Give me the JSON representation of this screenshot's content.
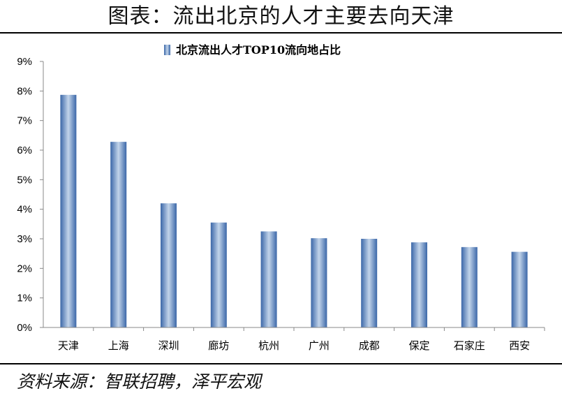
{
  "header": {
    "title": "图表：流出北京的人才主要去向天津"
  },
  "footer": {
    "source": "资料来源：智联招聘，泽平宏观"
  },
  "colors": {
    "bar_dark": "#3b67a8",
    "bar_light": "#c2d4ea",
    "axis": "#888888"
  },
  "chart_data": {
    "type": "bar",
    "title": "北京流出人才TOP10流向地占比",
    "xlabel": "",
    "ylabel": "",
    "categories": [
      "天津",
      "上海",
      "深圳",
      "廊坊",
      "杭州",
      "广州",
      "成都",
      "保定",
      "石家庄",
      "西安"
    ],
    "series": [
      {
        "name": "北京流出人才TOP10流向地占比",
        "values": [
          7.87,
          6.28,
          4.2,
          3.55,
          3.25,
          3.02,
          3.0,
          2.88,
          2.72,
          2.56
        ]
      }
    ],
    "ylim": [
      0,
      9
    ],
    "yticks": [
      "0%",
      "1%",
      "2%",
      "3%",
      "4%",
      "5%",
      "6%",
      "7%",
      "8%",
      "9%"
    ],
    "grid": false,
    "legend": "top-center"
  }
}
